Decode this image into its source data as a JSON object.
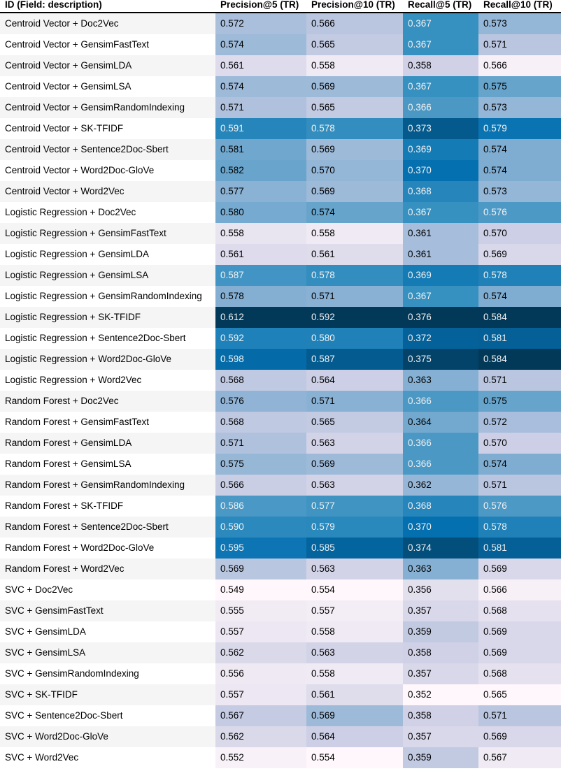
{
  "chart_data": {
    "type": "table",
    "columns": [
      "ID (Field: description)",
      "Precision@5 (TR)",
      "Precision@10 (TR)",
      "Recall@5 (TR)",
      "Recall@10 (TR)"
    ],
    "colormap": [
      "#fff7fb",
      "#023858"
    ],
    "rows": [
      {
        "id": "Centroid Vector + Doc2Vec",
        "values": [
          0.572,
          0.566,
          0.367,
          0.573
        ]
      },
      {
        "id": "Centroid Vector + GensimFastText",
        "values": [
          0.574,
          0.565,
          0.367,
          0.571
        ]
      },
      {
        "id": "Centroid Vector + GensimLDA",
        "values": [
          0.561,
          0.558,
          0.358,
          0.566
        ]
      },
      {
        "id": "Centroid Vector + GensimLSA",
        "values": [
          0.574,
          0.569,
          0.367,
          0.575
        ]
      },
      {
        "id": "Centroid Vector + GensimRandomIndexing",
        "values": [
          0.571,
          0.565,
          0.366,
          0.573
        ]
      },
      {
        "id": "Centroid Vector + SK-TFIDF",
        "values": [
          0.591,
          0.578,
          0.373,
          0.579
        ]
      },
      {
        "id": "Centroid Vector + Sentence2Doc-Sbert",
        "values": [
          0.581,
          0.569,
          0.369,
          0.574
        ]
      },
      {
        "id": "Centroid Vector + Word2Doc-GloVe",
        "values": [
          0.582,
          0.57,
          0.37,
          0.574
        ]
      },
      {
        "id": "Centroid Vector + Word2Vec",
        "values": [
          0.577,
          0.569,
          0.368,
          0.573
        ]
      },
      {
        "id": "Logistic Regression + Doc2Vec",
        "values": [
          0.58,
          0.574,
          0.367,
          0.576
        ]
      },
      {
        "id": "Logistic Regression + GensimFastText",
        "values": [
          0.558,
          0.558,
          0.361,
          0.57
        ]
      },
      {
        "id": "Logistic Regression + GensimLDA",
        "values": [
          0.561,
          0.561,
          0.361,
          0.569
        ]
      },
      {
        "id": "Logistic Regression + GensimLSA",
        "values": [
          0.587,
          0.578,
          0.369,
          0.578
        ]
      },
      {
        "id": "Logistic Regression + GensimRandomIndexing",
        "values": [
          0.578,
          0.571,
          0.367,
          0.574
        ]
      },
      {
        "id": "Logistic Regression + SK-TFIDF",
        "values": [
          0.612,
          0.592,
          0.376,
          0.584
        ]
      },
      {
        "id": "Logistic Regression + Sentence2Doc-Sbert",
        "values": [
          0.592,
          0.58,
          0.372,
          0.581
        ]
      },
      {
        "id": "Logistic Regression + Word2Doc-GloVe",
        "values": [
          0.598,
          0.587,
          0.375,
          0.584
        ]
      },
      {
        "id": "Logistic Regression + Word2Vec",
        "values": [
          0.568,
          0.564,
          0.363,
          0.571
        ]
      },
      {
        "id": "Random Forest + Doc2Vec",
        "values": [
          0.576,
          0.571,
          0.366,
          0.575
        ]
      },
      {
        "id": "Random Forest + GensimFastText",
        "values": [
          0.568,
          0.565,
          0.364,
          0.572
        ]
      },
      {
        "id": "Random Forest + GensimLDA",
        "values": [
          0.571,
          0.563,
          0.366,
          0.57
        ]
      },
      {
        "id": "Random Forest + GensimLSA",
        "values": [
          0.575,
          0.569,
          0.366,
          0.574
        ]
      },
      {
        "id": "Random Forest + GensimRandomIndexing",
        "values": [
          0.566,
          0.563,
          0.362,
          0.571
        ]
      },
      {
        "id": "Random Forest + SK-TFIDF",
        "values": [
          0.586,
          0.577,
          0.368,
          0.576
        ]
      },
      {
        "id": "Random Forest + Sentence2Doc-Sbert",
        "values": [
          0.59,
          0.579,
          0.37,
          0.578
        ]
      },
      {
        "id": "Random Forest + Word2Doc-GloVe",
        "values": [
          0.595,
          0.585,
          0.374,
          0.581
        ]
      },
      {
        "id": "Random Forest + Word2Vec",
        "values": [
          0.569,
          0.563,
          0.363,
          0.569
        ]
      },
      {
        "id": "SVC + Doc2Vec",
        "values": [
          0.549,
          0.554,
          0.356,
          0.566
        ]
      },
      {
        "id": "SVC + GensimFastText",
        "values": [
          0.555,
          0.557,
          0.357,
          0.568
        ]
      },
      {
        "id": "SVC + GensimLDA",
        "values": [
          0.557,
          0.558,
          0.359,
          0.569
        ]
      },
      {
        "id": "SVC + GensimLSA",
        "values": [
          0.562,
          0.563,
          0.358,
          0.569
        ]
      },
      {
        "id": "SVC + GensimRandomIndexing",
        "values": [
          0.556,
          0.558,
          0.357,
          0.568
        ]
      },
      {
        "id": "SVC + SK-TFIDF",
        "values": [
          0.557,
          0.561,
          0.352,
          0.565
        ]
      },
      {
        "id": "SVC + Sentence2Doc-Sbert",
        "values": [
          0.567,
          0.569,
          0.358,
          0.571
        ]
      },
      {
        "id": "SVC + Word2Doc-GloVe",
        "values": [
          0.562,
          0.564,
          0.357,
          0.569
        ]
      },
      {
        "id": "SVC + Word2Vec",
        "values": [
          0.552,
          0.554,
          0.359,
          0.567
        ]
      }
    ]
  }
}
